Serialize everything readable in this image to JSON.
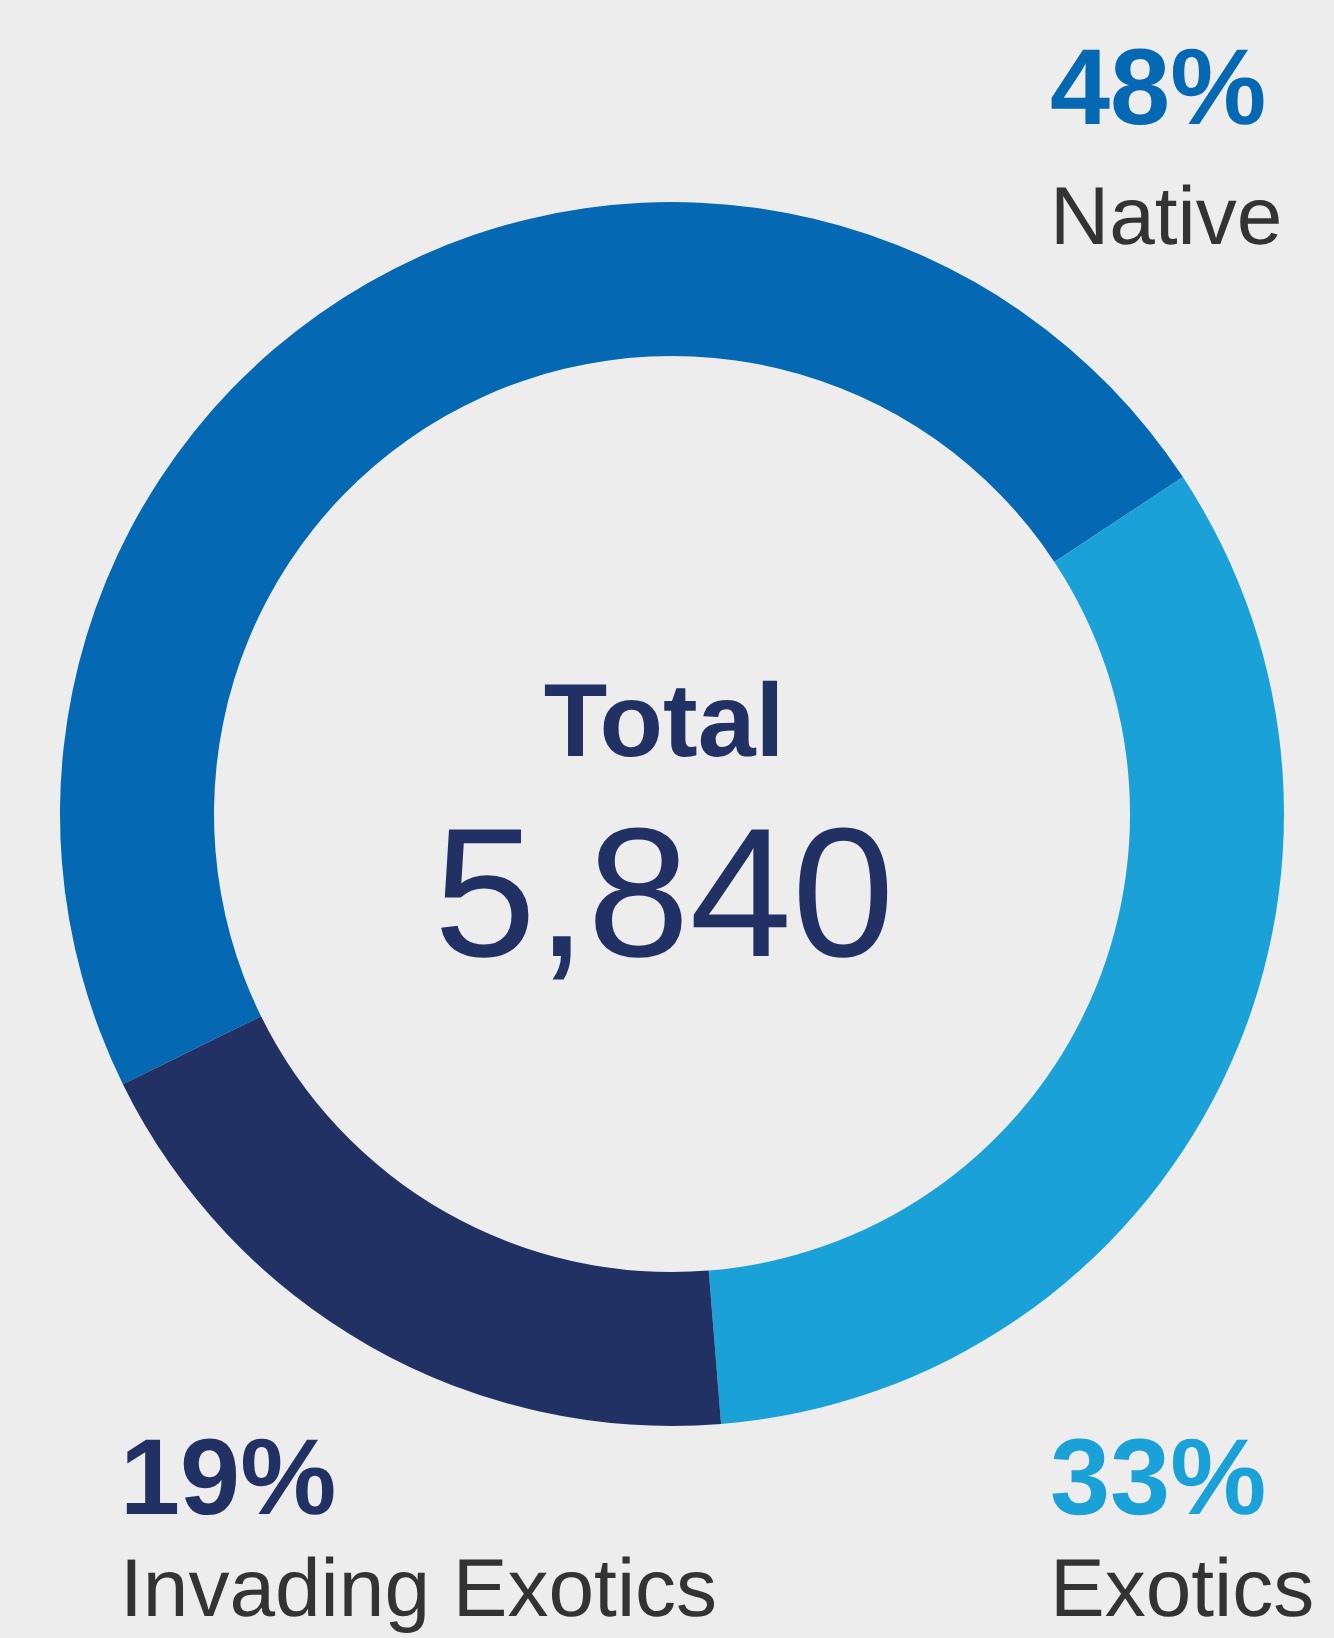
{
  "chart_data": {
    "type": "donut",
    "categories": [
      "Native",
      "Exotics",
      "Invading Exotics"
    ],
    "values": [
      48,
      33,
      19
    ],
    "colors": [
      "#0568b2",
      "#1aa2d8",
      "#223163"
    ],
    "value_labels": [
      "48%",
      "33%",
      "19%"
    ],
    "annotations": [
      "Total",
      "5,840"
    ]
  }
}
